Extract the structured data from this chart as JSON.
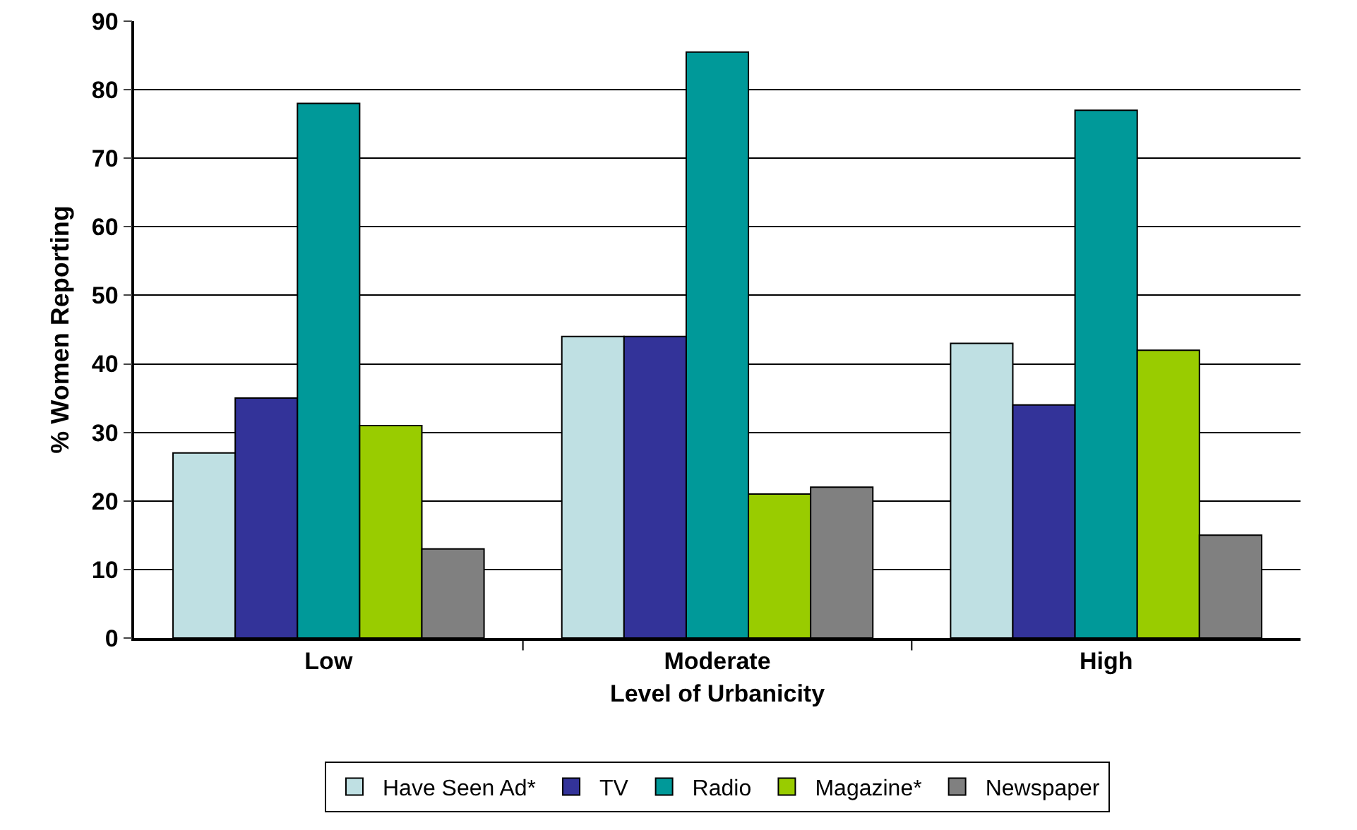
{
  "chart_data": {
    "type": "bar",
    "xlabel": "Level of Urbanicity",
    "ylabel": "% Women Reporting",
    "categories": [
      "Low",
      "Moderate",
      "High"
    ],
    "series": [
      {
        "name": "Have Seen Ad*",
        "color": "#bfe0e3",
        "values": [
          27,
          44,
          43
        ]
      },
      {
        "name": "TV",
        "color": "#333399",
        "values": [
          35,
          44,
          34
        ]
      },
      {
        "name": "Radio",
        "color": "#009999",
        "values": [
          78,
          85.5,
          77
        ]
      },
      {
        "name": "Magazine*",
        "color": "#99cc00",
        "values": [
          31,
          21,
          42
        ]
      },
      {
        "name": "Newspaper",
        "color": "#808080",
        "values": [
          13,
          22,
          15
        ]
      }
    ],
    "ylim": [
      0,
      90
    ],
    "yticks": [
      0,
      10,
      20,
      30,
      40,
      50,
      60,
      70,
      80,
      90
    ],
    "grid": "y",
    "legend": "bottom"
  }
}
